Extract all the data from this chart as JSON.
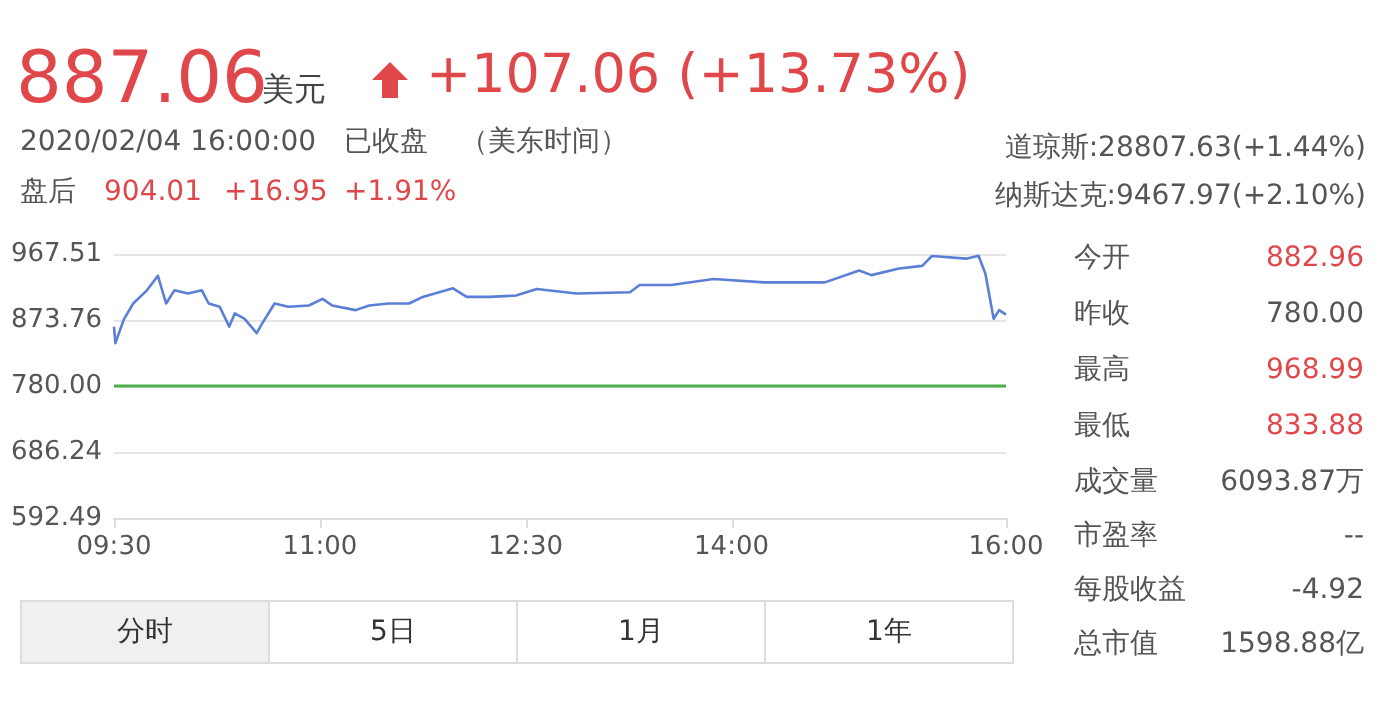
{
  "chart_data": {
    "type": "line",
    "annotations": [
      "887.06",
      "美元",
      "+107.06 (+13.73%)",
      "2020/02/04 16:00:00",
      "已收盘",
      "（美东时间）",
      "盘后",
      "904.01",
      "+16.95",
      "+1.91%",
      "道琼斯:28807.63(+1.44%)",
      "纳斯达克:9467.97(+2.10%)",
      "今开",
      "882.96",
      "昨收",
      "780.00",
      "最高",
      "968.99",
      "最低",
      "833.88",
      "成交量",
      "6093.87万",
      "市盈率",
      "--",
      "每股收益",
      "-4.92",
      "总市值",
      "1598.88亿",
      "分时",
      "5日",
      "1月",
      "1年"
    ],
    "x": [
      9.5,
      9.51,
      9.57,
      9.64,
      9.74,
      9.82,
      9.88,
      9.94,
      10.04,
      10.14,
      10.19,
      10.27,
      10.34,
      10.38,
      10.45,
      10.54,
      10.58,
      10.67,
      10.77,
      10.92,
      11.02,
      11.09,
      11.26,
      11.36,
      11.5,
      11.65,
      11.75,
      11.97,
      12.07,
      12.24,
      12.43,
      12.58,
      12.87,
      13.26,
      13.33,
      13.56,
      13.87,
      14.24,
      14.68,
      14.93,
      15.02,
      15.22,
      15.39,
      15.46,
      15.71,
      15.8,
      15.85,
      15.91,
      15.95,
      16.0
    ],
    "series": [
      {
        "color": "#5b7fd6",
        "values": [
          864.4,
          840.9,
          873.8,
          897.2,
          915.9,
          936.6,
          897.2,
          915.9,
          911.3,
          915.9,
          897.2,
          892.5,
          864.4,
          883.1,
          875.6,
          855,
          869,
          897.2,
          892.5,
          894.4,
          903.8,
          894.4,
          887.8,
          894.4,
          897.2,
          897.2,
          906.6,
          918.8,
          906.6,
          906.6,
          908.5,
          917.8,
          911.3,
          913.1,
          923.4,
          923.4,
          931.9,
          927.2,
          927.2,
          944.1,
          937.5,
          946.9,
          950.6,
          964.7,
          960.9,
          965,
          939.4,
          875.6,
          887.8,
          881.3
        ]
      }
    ],
    "xlim": [
      9.5,
      16.0
    ],
    "xticks": [
      {
        "value": 9.5,
        "label": "09:30"
      },
      {
        "value": 11,
        "label": "11:00"
      },
      {
        "value": 12.5,
        "label": "12:30"
      },
      {
        "value": 14,
        "label": "14:00"
      },
      {
        "value": 16,
        "label": "16:00"
      }
    ],
    "ylim": [
      592.49,
      967.51
    ],
    "yticks": [
      592.49,
      686.24,
      {
        "value": 780,
        "label": "780.00"
      },
      873.76,
      967.51
    ],
    "ref_lines": [
      {
        "axis": "y",
        "value": 780,
        "color": "#4caf50"
      }
    ],
    "grid": "y",
    "marker": "none",
    "line_style": "solid"
  }
}
